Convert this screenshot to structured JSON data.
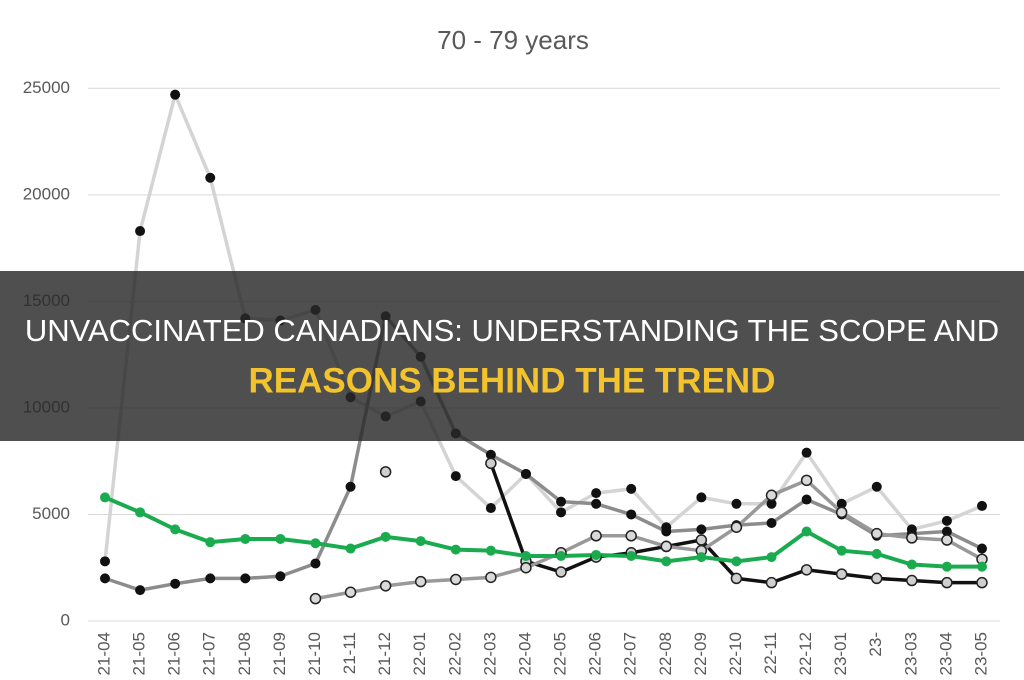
{
  "chart_data": {
    "type": "line",
    "title": "70 - 79 years",
    "categories": [
      "21-04",
      "21-05",
      "21-06",
      "21-07",
      "21-08",
      "21-09",
      "21-10",
      "21-11",
      "21-12",
      "22-01",
      "22-02",
      "22-03",
      "22-04",
      "22-05",
      "22-06",
      "22-07",
      "22-08",
      "22-09",
      "22-10",
      "22-11",
      "22-12",
      "23-01",
      "23-",
      "23-03",
      "23-04",
      "23-05"
    ],
    "series": [
      {
        "color": "#d4d4d4",
        "marker_color": "#111111",
        "values": [
          2800,
          18300,
          24700,
          20800,
          14200,
          14100,
          14600,
          10500,
          9600,
          10300,
          6800,
          5300,
          6900,
          5100,
          6000,
          6200,
          4400,
          5800,
          5500,
          5500,
          7900,
          5500,
          6300,
          4300,
          4700,
          5400
        ]
      },
      {
        "color": "#8c8c8c",
        "marker_color": "#111111",
        "values": [
          2000,
          1450,
          1750,
          2000,
          2000,
          2100,
          2700,
          6300,
          14300,
          12400,
          8800,
          7800,
          6900,
          5600,
          5500,
          5000,
          4200,
          4300,
          4500,
          4600,
          5700,
          5000,
          4000,
          4100,
          4200,
          3400
        ]
      },
      {
        "color": "#111111",
        "marker_color": "#cfcfcf",
        "values": [
          null,
          null,
          null,
          null,
          null,
          null,
          null,
          null,
          7000,
          null,
          null,
          7400,
          2800,
          2300,
          3000,
          3200,
          3500,
          3800,
          2000,
          1800,
          2400,
          2200,
          2000,
          1900,
          1800,
          1800
        ]
      },
      {
        "color": "#999999",
        "marker_color": "#d9d9d9",
        "values": [
          null,
          null,
          null,
          null,
          null,
          null,
          1050,
          1350,
          1650,
          1850,
          1950,
          2050,
          2500,
          3200,
          4000,
          4000,
          3500,
          3300,
          4400,
          5900,
          6600,
          5100,
          4100,
          3900,
          3800,
          2900
        ]
      },
      {
        "color": "#1aab4f",
        "marker_color": "#1aab4f",
        "values": [
          5800,
          5100,
          4300,
          3700,
          3850,
          3850,
          3650,
          3400,
          3950,
          3750,
          3350,
          3300,
          3050,
          3050,
          3100,
          3050,
          2800,
          3000,
          2800,
          3000,
          4200,
          3300,
          3150,
          2650,
          2550,
          2550
        ]
      }
    ],
    "ylim": [
      0,
      27500
    ],
    "yticks": [
      0,
      5000,
      10000,
      15000,
      20000,
      25000
    ],
    "grid": true
  },
  "banner": {
    "line1": "UNVACCINATED CANADIANS: UNDERSTANDING THE SCOPE AND",
    "line2": "REASONS BEHIND THE TREND"
  }
}
